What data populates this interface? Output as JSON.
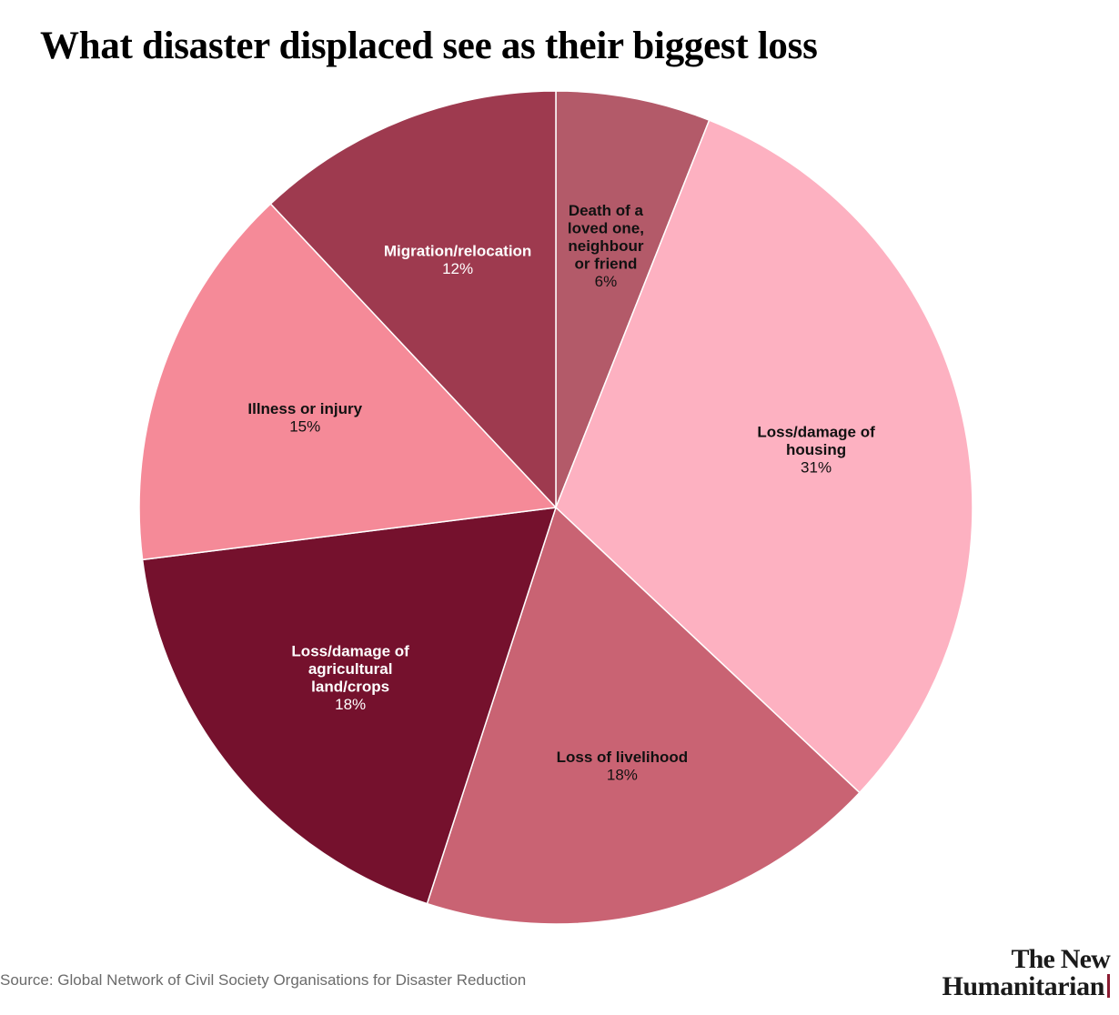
{
  "chart_data": {
    "type": "pie",
    "title": "What disaster displaced see as their biggest loss",
    "slices": [
      {
        "label": [
          "Death of a",
          "loved one,",
          "neighbour",
          "or friend"
        ],
        "value": 6,
        "value_label": "6%",
        "color": "#b35a69",
        "text_color": "#111111"
      },
      {
        "label": [
          "Loss/damage of",
          "housing"
        ],
        "value": 31,
        "value_label": "31%",
        "color": "#fdb1c1",
        "text_color": "#111111"
      },
      {
        "label": [
          "Loss of livelihood"
        ],
        "value": 18,
        "value_label": "18%",
        "color": "#c96373",
        "text_color": "#111111"
      },
      {
        "label": [
          "Loss/damage of",
          "agricultural",
          "land/crops"
        ],
        "value": 18,
        "value_label": "18%",
        "color": "#75112d",
        "text_color": "#ffffff"
      },
      {
        "label": [
          "Illness or injury"
        ],
        "value": 15,
        "value_label": "15%",
        "color": "#f58a98",
        "text_color": "#111111"
      },
      {
        "label": [
          "Migration/relocation"
        ],
        "value": 12,
        "value_label": "12%",
        "color": "#9e3a4f",
        "text_color": "#ffffff"
      }
    ]
  },
  "footer": {
    "source": "Source: Global Network of Civil Society Organisations for Disaster Reduction",
    "brand_line1": "The New",
    "brand_line2": "Humanitarian"
  }
}
